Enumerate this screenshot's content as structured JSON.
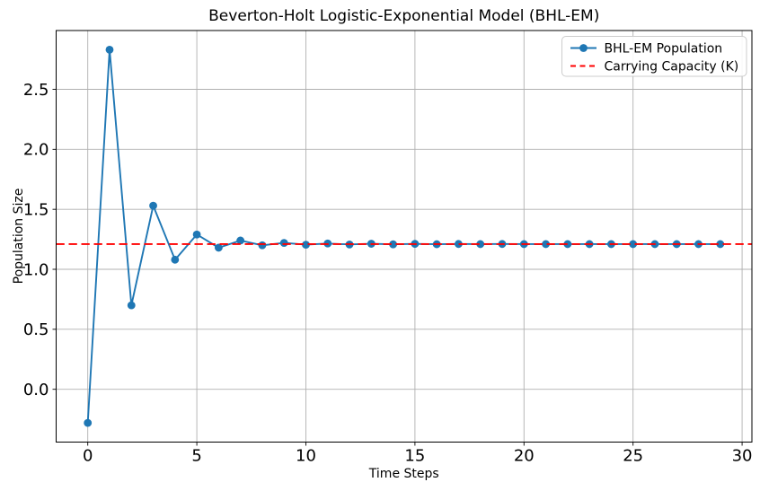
{
  "chart_data": {
    "type": "line",
    "title": "Beverton-Holt Logistic-Exponential Model (BHL-EM)",
    "xlabel": "Time Steps",
    "ylabel": "Population Size",
    "x": [
      0,
      1,
      2,
      3,
      4,
      5,
      6,
      7,
      8,
      9,
      10,
      11,
      12,
      13,
      14,
      15,
      16,
      17,
      18,
      19,
      20,
      21,
      22,
      23,
      24,
      25,
      26,
      27,
      28,
      29
    ],
    "series": [
      {
        "name": "BHL-EM Population",
        "color": "#1f77b4",
        "marker": "circle",
        "linestyle": "solid",
        "values": [
          -0.28,
          2.83,
          0.7,
          1.53,
          1.08,
          1.29,
          1.18,
          1.24,
          1.2,
          1.22,
          1.205,
          1.215,
          1.207,
          1.213,
          1.208,
          1.212,
          1.209,
          1.211,
          1.21,
          1.211,
          1.21,
          1.21,
          1.21,
          1.21,
          1.21,
          1.21,
          1.21,
          1.21,
          1.21,
          1.21
        ]
      }
    ],
    "reference_lines": [
      {
        "label": "Carrying Capacity (K)",
        "y": 1.21,
        "color": "#ff0000",
        "linestyle": "dashed"
      }
    ],
    "xticks": [
      0,
      5,
      10,
      15,
      20,
      25,
      30
    ],
    "yticks": [
      0.0,
      0.5,
      1.0,
      1.5,
      2.0,
      2.5
    ],
    "xlim": [
      -1.45,
      30.45
    ],
    "ylim": [
      -0.44,
      2.99
    ],
    "grid": true,
    "legend": {
      "position": "upper-right",
      "entries": [
        "BHL-EM Population",
        "Carrying Capacity (K)"
      ]
    },
    "colors": {
      "series": "#1f77b4",
      "reference": "#ff0000",
      "grid": "#b0b0b0",
      "spine": "#000000",
      "legend_border": "#cccccc"
    }
  }
}
